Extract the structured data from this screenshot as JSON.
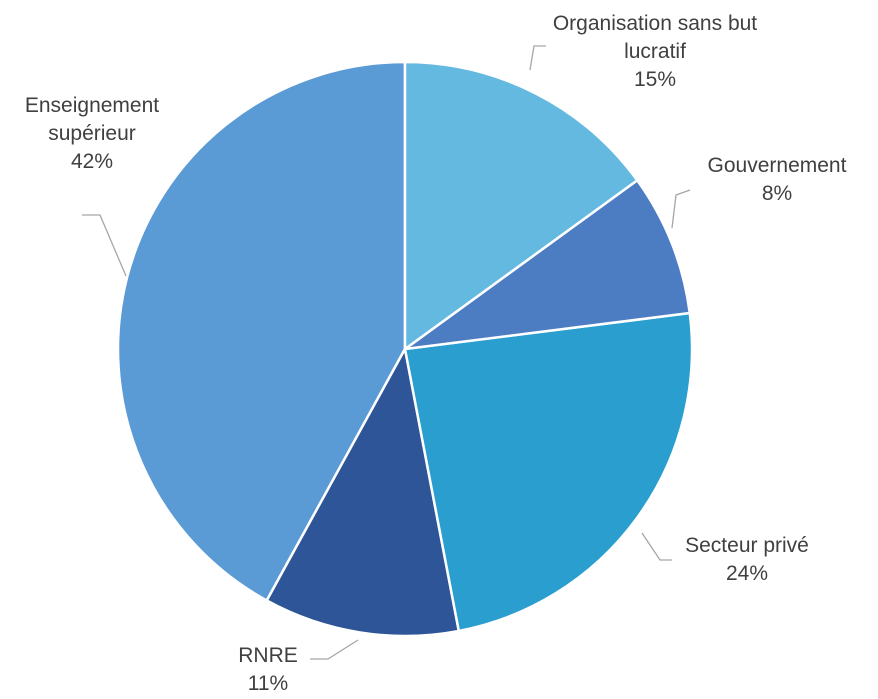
{
  "chart_data": {
    "type": "pie",
    "categories": [
      "Organisation sans but lucratif",
      "Gouvernement",
      "Secteur privé",
      "RNRE",
      "Enseignement supérieur"
    ],
    "values": [
      15,
      8,
      24,
      11,
      42
    ],
    "value_labels": [
      "15%",
      "8%",
      "24%",
      "11%",
      "42%"
    ],
    "colors": [
      "#63b9e0",
      "#4c7dc3",
      "#2a9ecf",
      "#2e5597",
      "#5b9bd5"
    ]
  }
}
